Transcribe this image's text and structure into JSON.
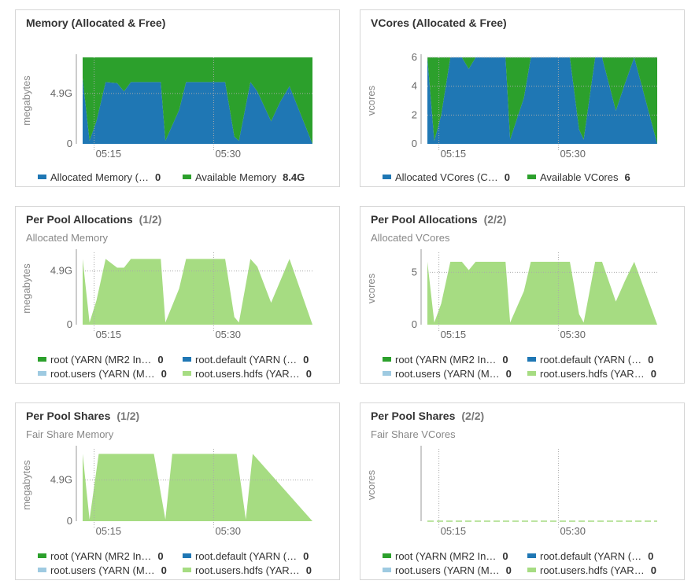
{
  "colors": {
    "blue": "#1f77b4",
    "green": "#2ca02c",
    "lightgreen": "#a6dc82",
    "lightblue": "#9ecae1"
  },
  "panels": [
    {
      "title": "Memory (Allocated & Free)",
      "page": "",
      "subtitle": "",
      "ylabel": "megabytes",
      "yticks": [
        {
          "v": 0,
          "label": "0"
        },
        {
          "v": 4.9,
          "label": "4.9G"
        }
      ],
      "ymax": 8.4,
      "xticks": [
        {
          "v": 0.05,
          "label": "05:15"
        },
        {
          "v": 0.57,
          "label": "05:30"
        }
      ],
      "stacked": true,
      "chart_data": {
        "type": "area",
        "x": [
          0,
          0.03,
          0.06,
          0.1,
          0.15,
          0.18,
          0.21,
          0.24,
          0.34,
          0.36,
          0.42,
          0.45,
          0.62,
          0.66,
          0.68,
          0.73,
          0.76,
          0.82,
          0.86,
          0.9,
          1
        ],
        "series": [
          {
            "name": "Allocated Memory (…",
            "color": "#1f77b4",
            "values": [
              6.4,
              0.3,
              2.2,
              6.0,
              5.9,
              5.1,
              6.0,
              6.0,
              6.0,
              0.3,
              3.3,
              6.0,
              6.0,
              0.7,
              0.3,
              6.0,
              5.1,
              2.2,
              4.1,
              5.6,
              0
            ]
          },
          {
            "name": "Available Memory",
            "color": "#2ca02c",
            "values": [
              2.0,
              8.1,
              6.2,
              2.4,
              2.5,
              3.3,
              2.4,
              2.4,
              2.4,
              8.1,
              5.1,
              2.4,
              2.4,
              7.7,
              8.1,
              2.4,
              3.3,
              6.2,
              4.3,
              2.8,
              8.4
            ]
          }
        ]
      },
      "legend": [
        [
          {
            "name": "Allocated Memory (…",
            "value": "0",
            "color": "#1f77b4"
          },
          {
            "name": "Available Memory",
            "value": "8.4G",
            "color": "#2ca02c"
          }
        ]
      ]
    },
    {
      "title": "VCores (Allocated & Free)",
      "page": "",
      "subtitle": "",
      "ylabel": "vcores",
      "yticks": [
        {
          "v": 0,
          "label": "0"
        },
        {
          "v": 2,
          "label": "2"
        },
        {
          "v": 4,
          "label": "4"
        },
        {
          "v": 6,
          "label": "6"
        }
      ],
      "ymax": 6,
      "xticks": [
        {
          "v": 0.05,
          "label": "05:15"
        },
        {
          "v": 0.57,
          "label": "05:30"
        }
      ],
      "stacked": true,
      "chart_data": {
        "type": "area",
        "x": [
          0,
          0.03,
          0.06,
          0.1,
          0.15,
          0.18,
          0.21,
          0.24,
          0.34,
          0.36,
          0.42,
          0.45,
          0.62,
          0.66,
          0.68,
          0.73,
          0.76,
          0.82,
          0.86,
          0.9,
          1
        ],
        "series": [
          {
            "name": "Allocated VCores (C…",
            "color": "#1f77b4",
            "values": [
              6,
              0.2,
              2,
              6,
              6,
              5.2,
              6,
              6,
              6,
              0.3,
              3.2,
              6,
              6,
              1,
              0.3,
              6,
              6,
              2.3,
              4.2,
              6,
              0
            ]
          },
          {
            "name": "Available VCores",
            "color": "#2ca02c",
            "values": [
              0,
              5.8,
              4,
              0,
              0,
              0.8,
              0,
              0,
              0,
              5.7,
              2.8,
              0,
              0,
              5,
              5.7,
              0,
              0,
              3.7,
              1.8,
              0,
              6
            ]
          }
        ]
      },
      "legend": [
        [
          {
            "name": "Allocated VCores (C…",
            "value": "0",
            "color": "#1f77b4"
          },
          {
            "name": "Available VCores",
            "value": "6",
            "color": "#2ca02c"
          }
        ]
      ]
    },
    {
      "title": "Per Pool Allocations",
      "page": "(1/2)",
      "subtitle": "Allocated Memory",
      "ylabel": "megabytes",
      "yticks": [
        {
          "v": 0,
          "label": "0"
        },
        {
          "v": 4.9,
          "label": "4.9G"
        }
      ],
      "ymax": 6.6,
      "xticks": [
        {
          "v": 0.05,
          "label": "05:15"
        },
        {
          "v": 0.57,
          "label": "05:30"
        }
      ],
      "stacked": false,
      "chart_data": {
        "type": "area",
        "x": [
          0,
          0.03,
          0.06,
          0.1,
          0.15,
          0.18,
          0.21,
          0.24,
          0.34,
          0.36,
          0.42,
          0.45,
          0.62,
          0.66,
          0.68,
          0.73,
          0.76,
          0.82,
          0.86,
          0.9,
          1
        ],
        "series": [
          {
            "name": "root.users.hdfs (YAR…",
            "color": "#a6dc82",
            "values": [
              6.0,
              0.2,
              2.2,
              6.0,
              5.2,
              5.2,
              6.0,
              6.0,
              6.0,
              0.2,
              3.3,
              6.0,
              6.0,
              0.7,
              0.2,
              6.0,
              5.3,
              2.0,
              4.0,
              6.0,
              0
            ]
          }
        ]
      },
      "legend": [
        [
          {
            "name": "root (YARN (MR2 In…",
            "value": "0",
            "color": "#2ca02c"
          },
          {
            "name": "root.default (YARN (…",
            "value": "0",
            "color": "#1f77b4"
          }
        ],
        [
          {
            "name": "root.users (YARN (M…",
            "value": "0",
            "color": "#9ecae1"
          },
          {
            "name": "root.users.hdfs (YAR…",
            "value": "0",
            "color": "#a6dc82"
          }
        ]
      ]
    },
    {
      "title": "Per Pool Allocations",
      "page": "(2/2)",
      "subtitle": "Allocated VCores",
      "ylabel": "vcores",
      "yticks": [
        {
          "v": 0,
          "label": "0"
        },
        {
          "v": 5,
          "label": "5"
        }
      ],
      "ymax": 6.9,
      "xticks": [
        {
          "v": 0.05,
          "label": "05:15"
        },
        {
          "v": 0.57,
          "label": "05:30"
        }
      ],
      "stacked": false,
      "chart_data": {
        "type": "area",
        "x": [
          0,
          0.03,
          0.06,
          0.1,
          0.15,
          0.18,
          0.21,
          0.24,
          0.34,
          0.36,
          0.42,
          0.45,
          0.62,
          0.66,
          0.68,
          0.73,
          0.76,
          0.82,
          0.86,
          0.9,
          1
        ],
        "series": [
          {
            "name": "root.users.hdfs (YAR…",
            "color": "#a6dc82",
            "values": [
              6,
              0.2,
              2,
              6,
              6,
              5.2,
              6,
              6,
              6,
              0.2,
              3.2,
              6,
              6,
              1,
              0.2,
              6,
              6,
              2.2,
              4.2,
              6,
              0
            ]
          }
        ]
      },
      "legend": [
        [
          {
            "name": "root (YARN (MR2 In…",
            "value": "0",
            "color": "#2ca02c"
          },
          {
            "name": "root.default (YARN (…",
            "value": "0",
            "color": "#1f77b4"
          }
        ],
        [
          {
            "name": "root.users (YARN (M…",
            "value": "0",
            "color": "#9ecae1"
          },
          {
            "name": "root.users.hdfs (YAR…",
            "value": "0",
            "color": "#a6dc82"
          }
        ]
      ]
    },
    {
      "title": "Per Pool Shares",
      "page": "(1/2)",
      "subtitle": "Fair Share Memory",
      "ylabel": "megabytes",
      "yticks": [
        {
          "v": 0,
          "label": "0"
        },
        {
          "v": 4.9,
          "label": "4.9G"
        }
      ],
      "ymax": 8.6,
      "xticks": [
        {
          "v": 0.05,
          "label": "05:15"
        },
        {
          "v": 0.57,
          "label": "05:30"
        }
      ],
      "stacked": false,
      "chart_data": {
        "type": "area",
        "x": [
          0,
          0.03,
          0.07,
          0.1,
          0.31,
          0.36,
          0.39,
          0.67,
          0.71,
          0.74,
          1
        ],
        "series": [
          {
            "name": "root.users.hdfs (YAR…",
            "color": "#a6dc82",
            "values": [
              8.0,
              0.2,
              8.0,
              8.0,
              8.0,
              0.2,
              8.0,
              8.0,
              0.2,
              8.0,
              0
            ]
          }
        ]
      },
      "legend": [
        [
          {
            "name": "root (YARN (MR2 In…",
            "value": "0",
            "color": "#2ca02c"
          },
          {
            "name": "root.default (YARN (…",
            "value": "0",
            "color": "#1f77b4"
          }
        ],
        [
          {
            "name": "root.users (YARN (M…",
            "value": "0",
            "color": "#9ecae1"
          },
          {
            "name": "root.users.hdfs (YAR…",
            "value": "0",
            "color": "#a6dc82"
          }
        ]
      ]
    },
    {
      "title": "Per Pool Shares",
      "page": "(2/2)",
      "subtitle": "Fair Share VCores",
      "ylabel": "vcores",
      "yticks": [],
      "ymax": 1,
      "xticks": [
        {
          "v": 0.05,
          "label": "05:15"
        },
        {
          "v": 0.57,
          "label": "05:30"
        }
      ],
      "stacked": false,
      "dashed_zero": true,
      "chart_data": {
        "type": "line",
        "x": [
          0,
          1
        ],
        "series": [
          {
            "name": "root.users.hdfs (YAR…",
            "color": "#a6dc82",
            "values": [
              0,
              0
            ]
          }
        ]
      },
      "legend": [
        [
          {
            "name": "root (YARN (MR2 In…",
            "value": "0",
            "color": "#2ca02c"
          },
          {
            "name": "root.default (YARN (…",
            "value": "0",
            "color": "#1f77b4"
          }
        ],
        [
          {
            "name": "root.users (YARN (M…",
            "value": "0",
            "color": "#9ecae1"
          },
          {
            "name": "root.users.hdfs (YAR…",
            "value": "0",
            "color": "#a6dc82"
          }
        ]
      ]
    }
  ]
}
